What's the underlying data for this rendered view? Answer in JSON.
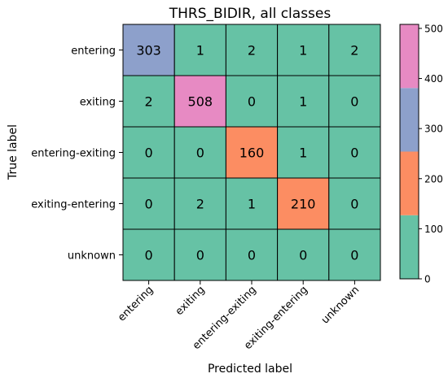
{
  "chart_data": {
    "type": "heatmap",
    "title": "THRS_BIDIR, all classes",
    "xlabel": "Predicted label",
    "ylabel": "True label",
    "x_categories": [
      "entering",
      "exiting",
      "entering-exiting",
      "exiting-entering",
      "unknown"
    ],
    "y_categories": [
      "entering",
      "exiting",
      "entering-exiting",
      "exiting-entering",
      "unknown"
    ],
    "values": [
      [
        303,
        1,
        2,
        1,
        2
      ],
      [
        2,
        508,
        0,
        1,
        0
      ],
      [
        0,
        0,
        160,
        1,
        0
      ],
      [
        0,
        2,
        1,
        210,
        0
      ],
      [
        0,
        0,
        0,
        0,
        0
      ]
    ],
    "colorbar": {
      "ticks": [
        0,
        100,
        200,
        300,
        400,
        500
      ],
      "range": [
        0,
        508
      ],
      "bins": [
        {
          "from": 0,
          "to": 127,
          "color": "#66c2a5"
        },
        {
          "from": 127,
          "to": 254,
          "color": "#fc8d62"
        },
        {
          "from": 254,
          "to": 381,
          "color": "#8da0cb"
        },
        {
          "from": 381,
          "to": 508,
          "color": "#e78ac3"
        }
      ]
    }
  }
}
